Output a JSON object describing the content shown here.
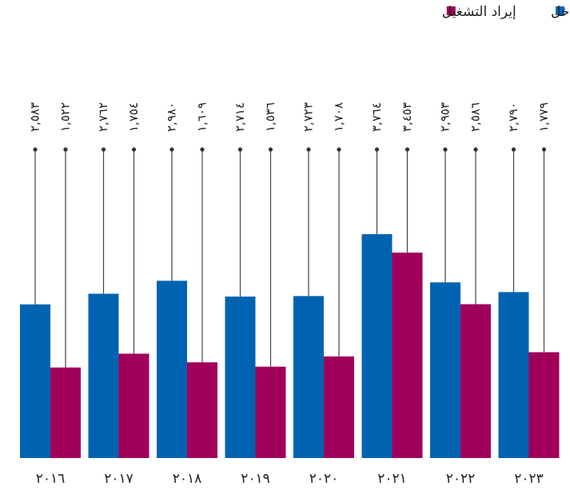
{
  "chart_data": {
    "type": "bar",
    "categories": [
      "٢٠١٦",
      "٢٠١٧",
      "٢٠١٨",
      "٢٠١٩",
      "٢٠٢٠",
      "٢٠٢١",
      "٢٠٢٢",
      "٢٠٢٣"
    ],
    "series": [
      {
        "name": "إجمالي الدخل",
        "color": "#0063b1",
        "values": [
          2583,
          2762,
          2980,
          2714,
          2723,
          3764,
          2953,
          2790
        ],
        "value_labels": [
          "٢,٥٨٣",
          "٢,٧٦٢",
          "٢,٩٨٠",
          "٢,٧١٤",
          "٢,٧٢٣",
          "٣,٧٦٤",
          "٢,٩٥٣",
          "٢,٧٩٠"
        ]
      },
      {
        "name": "إيراد التشغيل",
        "color": "#a0005a",
        "values": [
          1522,
          1754,
          1609,
          1536,
          1708,
          3453,
          2586,
          1779
        ],
        "value_labels": [
          "١,٥٢٢",
          "١,٧٥٤",
          "١,٦٠٩",
          "١,٥٣٦",
          "١,٧٠٨",
          "٣,٤٥٣",
          "٢,٥٨٦",
          "١,٧٧٩"
        ]
      }
    ],
    "ylim": [
      0,
      7700
    ],
    "legend": "top-right"
  }
}
